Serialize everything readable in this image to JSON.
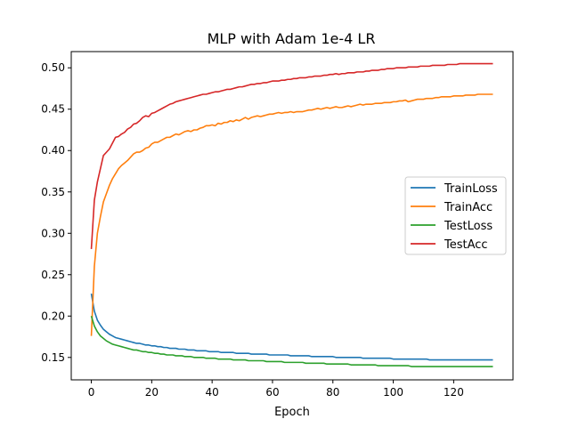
{
  "chart_data": {
    "type": "line",
    "title": "MLP with Adam 1e-4 LR",
    "xlabel": "Epoch",
    "ylabel": "",
    "xlim": [
      -6.65,
      139.65
    ],
    "ylim": [
      0.1229,
      0.5196
    ],
    "xticks": [
      0,
      20,
      40,
      60,
      80,
      100,
      120
    ],
    "yticks": [
      0.15,
      0.2,
      0.25,
      0.3,
      0.35,
      0.4,
      0.45,
      0.5
    ],
    "grid": false,
    "legend_position": "center-right",
    "x": [
      0,
      1,
      2,
      3,
      4,
      5,
      6,
      7,
      8,
      9,
      10,
      11,
      12,
      13,
      14,
      15,
      16,
      17,
      18,
      19,
      20,
      21,
      22,
      23,
      24,
      25,
      26,
      27,
      28,
      29,
      30,
      31,
      32,
      33,
      34,
      35,
      36,
      37,
      38,
      39,
      40,
      41,
      42,
      43,
      44,
      45,
      46,
      47,
      48,
      49,
      50,
      51,
      52,
      53,
      54,
      55,
      56,
      57,
      58,
      59,
      60,
      61,
      62,
      63,
      64,
      65,
      66,
      67,
      68,
      69,
      70,
      71,
      72,
      73,
      74,
      75,
      76,
      77,
      78,
      79,
      80,
      81,
      82,
      83,
      84,
      85,
      86,
      87,
      88,
      89,
      90,
      91,
      92,
      93,
      94,
      95,
      96,
      97,
      98,
      99,
      100,
      101,
      102,
      103,
      104,
      105,
      106,
      107,
      108,
      109,
      110,
      111,
      112,
      113,
      114,
      115,
      116,
      117,
      118,
      119,
      120,
      121,
      122,
      123,
      124,
      125,
      126,
      127,
      128,
      129,
      130,
      131,
      132,
      133
    ],
    "series": [
      {
        "name": "TrainLoss",
        "color": "#1f77b4",
        "values": [
          0.227,
          0.206,
          0.195,
          0.189,
          0.184,
          0.181,
          0.178,
          0.176,
          0.174,
          0.173,
          0.172,
          0.171,
          0.17,
          0.169,
          0.168,
          0.167,
          0.167,
          0.166,
          0.165,
          0.165,
          0.164,
          0.164,
          0.163,
          0.163,
          0.162,
          0.162,
          0.161,
          0.161,
          0.161,
          0.16,
          0.16,
          0.16,
          0.159,
          0.159,
          0.159,
          0.158,
          0.158,
          0.158,
          0.158,
          0.157,
          0.157,
          0.157,
          0.157,
          0.156,
          0.156,
          0.156,
          0.156,
          0.156,
          0.155,
          0.155,
          0.155,
          0.155,
          0.155,
          0.154,
          0.154,
          0.154,
          0.154,
          0.154,
          0.154,
          0.153,
          0.153,
          0.153,
          0.153,
          0.153,
          0.153,
          0.153,
          0.152,
          0.152,
          0.152,
          0.152,
          0.152,
          0.152,
          0.152,
          0.151,
          0.151,
          0.151,
          0.151,
          0.151,
          0.151,
          0.151,
          0.151,
          0.15,
          0.15,
          0.15,
          0.15,
          0.15,
          0.15,
          0.15,
          0.15,
          0.15,
          0.149,
          0.149,
          0.149,
          0.149,
          0.149,
          0.149,
          0.149,
          0.149,
          0.149,
          0.149,
          0.148,
          0.148,
          0.148,
          0.148,
          0.148,
          0.148,
          0.148,
          0.148,
          0.148,
          0.148,
          0.148,
          0.148,
          0.147,
          0.147,
          0.147,
          0.147,
          0.147,
          0.147,
          0.147,
          0.147,
          0.147,
          0.147,
          0.147,
          0.147,
          0.147,
          0.147,
          0.147,
          0.147,
          0.147,
          0.147,
          0.147,
          0.147,
          0.147,
          0.147
        ]
      },
      {
        "name": "TrainAcc",
        "color": "#ff7f0e",
        "values": [
          0.176,
          0.26,
          0.3,
          0.32,
          0.338,
          0.348,
          0.358,
          0.366,
          0.372,
          0.378,
          0.382,
          0.385,
          0.388,
          0.392,
          0.396,
          0.398,
          0.398,
          0.4,
          0.403,
          0.404,
          0.408,
          0.41,
          0.41,
          0.412,
          0.414,
          0.416,
          0.416,
          0.418,
          0.42,
          0.419,
          0.421,
          0.423,
          0.424,
          0.423,
          0.425,
          0.425,
          0.427,
          0.428,
          0.43,
          0.43,
          0.431,
          0.43,
          0.433,
          0.432,
          0.434,
          0.434,
          0.436,
          0.435,
          0.437,
          0.436,
          0.438,
          0.44,
          0.438,
          0.44,
          0.441,
          0.442,
          0.441,
          0.442,
          0.443,
          0.444,
          0.444,
          0.445,
          0.446,
          0.445,
          0.446,
          0.446,
          0.447,
          0.446,
          0.447,
          0.447,
          0.447,
          0.448,
          0.449,
          0.449,
          0.45,
          0.451,
          0.45,
          0.451,
          0.452,
          0.451,
          0.452,
          0.453,
          0.452,
          0.452,
          0.453,
          0.454,
          0.453,
          0.454,
          0.455,
          0.456,
          0.455,
          0.456,
          0.456,
          0.456,
          0.457,
          0.457,
          0.457,
          0.458,
          0.458,
          0.458,
          0.459,
          0.459,
          0.46,
          0.46,
          0.461,
          0.459,
          0.46,
          0.461,
          0.462,
          0.462,
          0.462,
          0.463,
          0.463,
          0.463,
          0.464,
          0.464,
          0.465,
          0.465,
          0.465,
          0.465,
          0.466,
          0.466,
          0.466,
          0.466,
          0.467,
          0.467,
          0.467,
          0.467,
          0.468,
          0.468,
          0.468,
          0.468,
          0.468,
          0.468
        ]
      },
      {
        "name": "TestLoss",
        "color": "#2ca02c",
        "values": [
          0.2,
          0.188,
          0.181,
          0.176,
          0.173,
          0.17,
          0.168,
          0.166,
          0.165,
          0.164,
          0.163,
          0.162,
          0.161,
          0.16,
          0.159,
          0.159,
          0.158,
          0.157,
          0.157,
          0.156,
          0.156,
          0.155,
          0.155,
          0.154,
          0.154,
          0.153,
          0.153,
          0.153,
          0.152,
          0.152,
          0.152,
          0.151,
          0.151,
          0.151,
          0.15,
          0.15,
          0.15,
          0.15,
          0.149,
          0.149,
          0.149,
          0.149,
          0.148,
          0.148,
          0.148,
          0.148,
          0.148,
          0.147,
          0.147,
          0.147,
          0.147,
          0.147,
          0.146,
          0.146,
          0.146,
          0.146,
          0.146,
          0.146,
          0.145,
          0.145,
          0.145,
          0.145,
          0.145,
          0.145,
          0.144,
          0.144,
          0.144,
          0.144,
          0.144,
          0.144,
          0.144,
          0.143,
          0.143,
          0.143,
          0.143,
          0.143,
          0.143,
          0.143,
          0.142,
          0.142,
          0.142,
          0.142,
          0.142,
          0.142,
          0.142,
          0.142,
          0.141,
          0.141,
          0.141,
          0.141,
          0.141,
          0.141,
          0.141,
          0.141,
          0.141,
          0.14,
          0.14,
          0.14,
          0.14,
          0.14,
          0.14,
          0.14,
          0.14,
          0.14,
          0.14,
          0.14,
          0.139,
          0.139,
          0.139,
          0.139,
          0.139,
          0.139,
          0.139,
          0.139,
          0.139,
          0.139,
          0.139,
          0.139,
          0.139,
          0.139,
          0.139,
          0.139,
          0.139,
          0.139,
          0.139,
          0.139,
          0.139,
          0.139,
          0.139,
          0.139,
          0.139,
          0.139,
          0.139,
          0.139
        ]
      },
      {
        "name": "TestAcc",
        "color": "#d62728",
        "values": [
          0.281,
          0.34,
          0.362,
          0.378,
          0.394,
          0.398,
          0.402,
          0.409,
          0.416,
          0.417,
          0.42,
          0.422,
          0.426,
          0.428,
          0.432,
          0.433,
          0.436,
          0.44,
          0.442,
          0.441,
          0.445,
          0.446,
          0.448,
          0.45,
          0.452,
          0.454,
          0.456,
          0.457,
          0.459,
          0.46,
          0.461,
          0.462,
          0.463,
          0.464,
          0.465,
          0.466,
          0.467,
          0.468,
          0.468,
          0.469,
          0.47,
          0.471,
          0.471,
          0.472,
          0.473,
          0.474,
          0.474,
          0.475,
          0.476,
          0.477,
          0.477,
          0.478,
          0.479,
          0.48,
          0.48,
          0.481,
          0.481,
          0.482,
          0.482,
          0.483,
          0.484,
          0.484,
          0.484,
          0.485,
          0.485,
          0.486,
          0.486,
          0.487,
          0.487,
          0.488,
          0.488,
          0.488,
          0.489,
          0.489,
          0.49,
          0.49,
          0.49,
          0.491,
          0.491,
          0.492,
          0.492,
          0.493,
          0.492,
          0.493,
          0.493,
          0.494,
          0.494,
          0.494,
          0.495,
          0.495,
          0.495,
          0.496,
          0.496,
          0.497,
          0.497,
          0.497,
          0.498,
          0.498,
          0.499,
          0.499,
          0.499,
          0.5,
          0.5,
          0.5,
          0.5,
          0.501,
          0.501,
          0.501,
          0.501,
          0.502,
          0.502,
          0.502,
          0.502,
          0.503,
          0.503,
          0.503,
          0.503,
          0.503,
          0.504,
          0.504,
          0.504,
          0.504,
          0.505,
          0.505,
          0.505,
          0.505,
          0.505,
          0.505,
          0.505,
          0.505,
          0.505,
          0.505,
          0.505,
          0.505
        ]
      }
    ]
  }
}
